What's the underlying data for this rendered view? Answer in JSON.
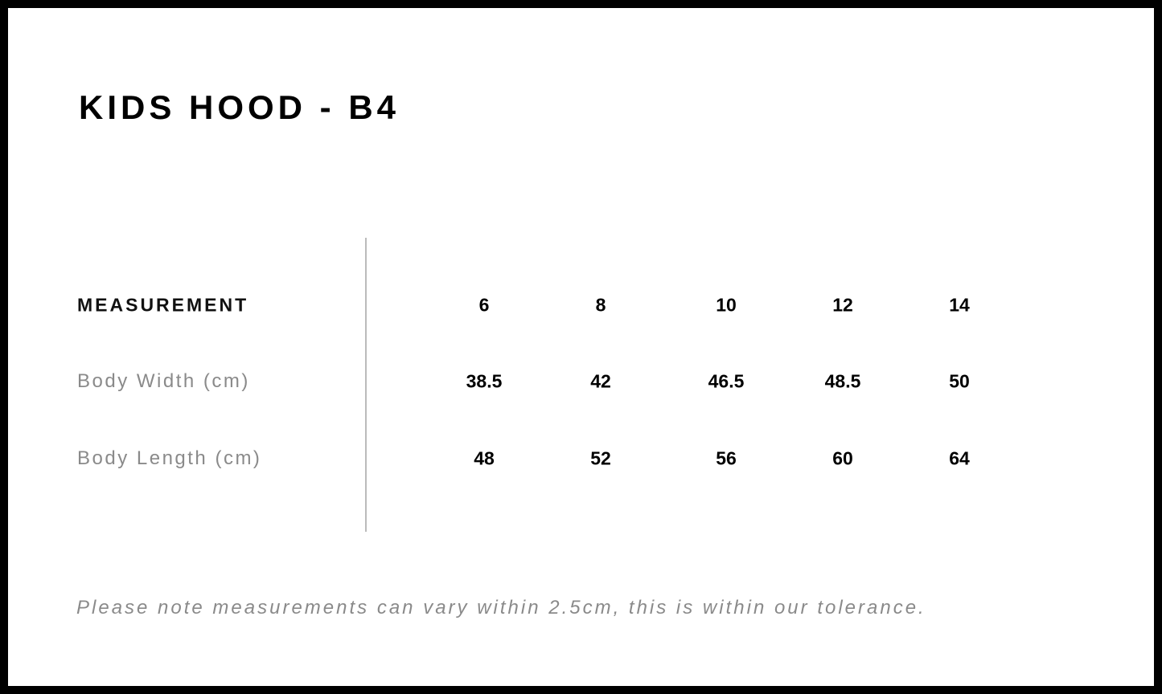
{
  "title": "KIDS HOOD - B4",
  "table": {
    "header": [
      "MEASUREMENT",
      "6",
      "8",
      "10",
      "12",
      "14"
    ],
    "rows": [
      [
        "Body Width (cm)",
        38.5,
        42,
        46.5,
        48.5,
        50
      ],
      [
        "Body Length (cm)",
        48,
        52,
        56,
        60,
        64
      ]
    ]
  },
  "note": "Please note measurements can vary within 2.5cm, this is within our tolerance."
}
